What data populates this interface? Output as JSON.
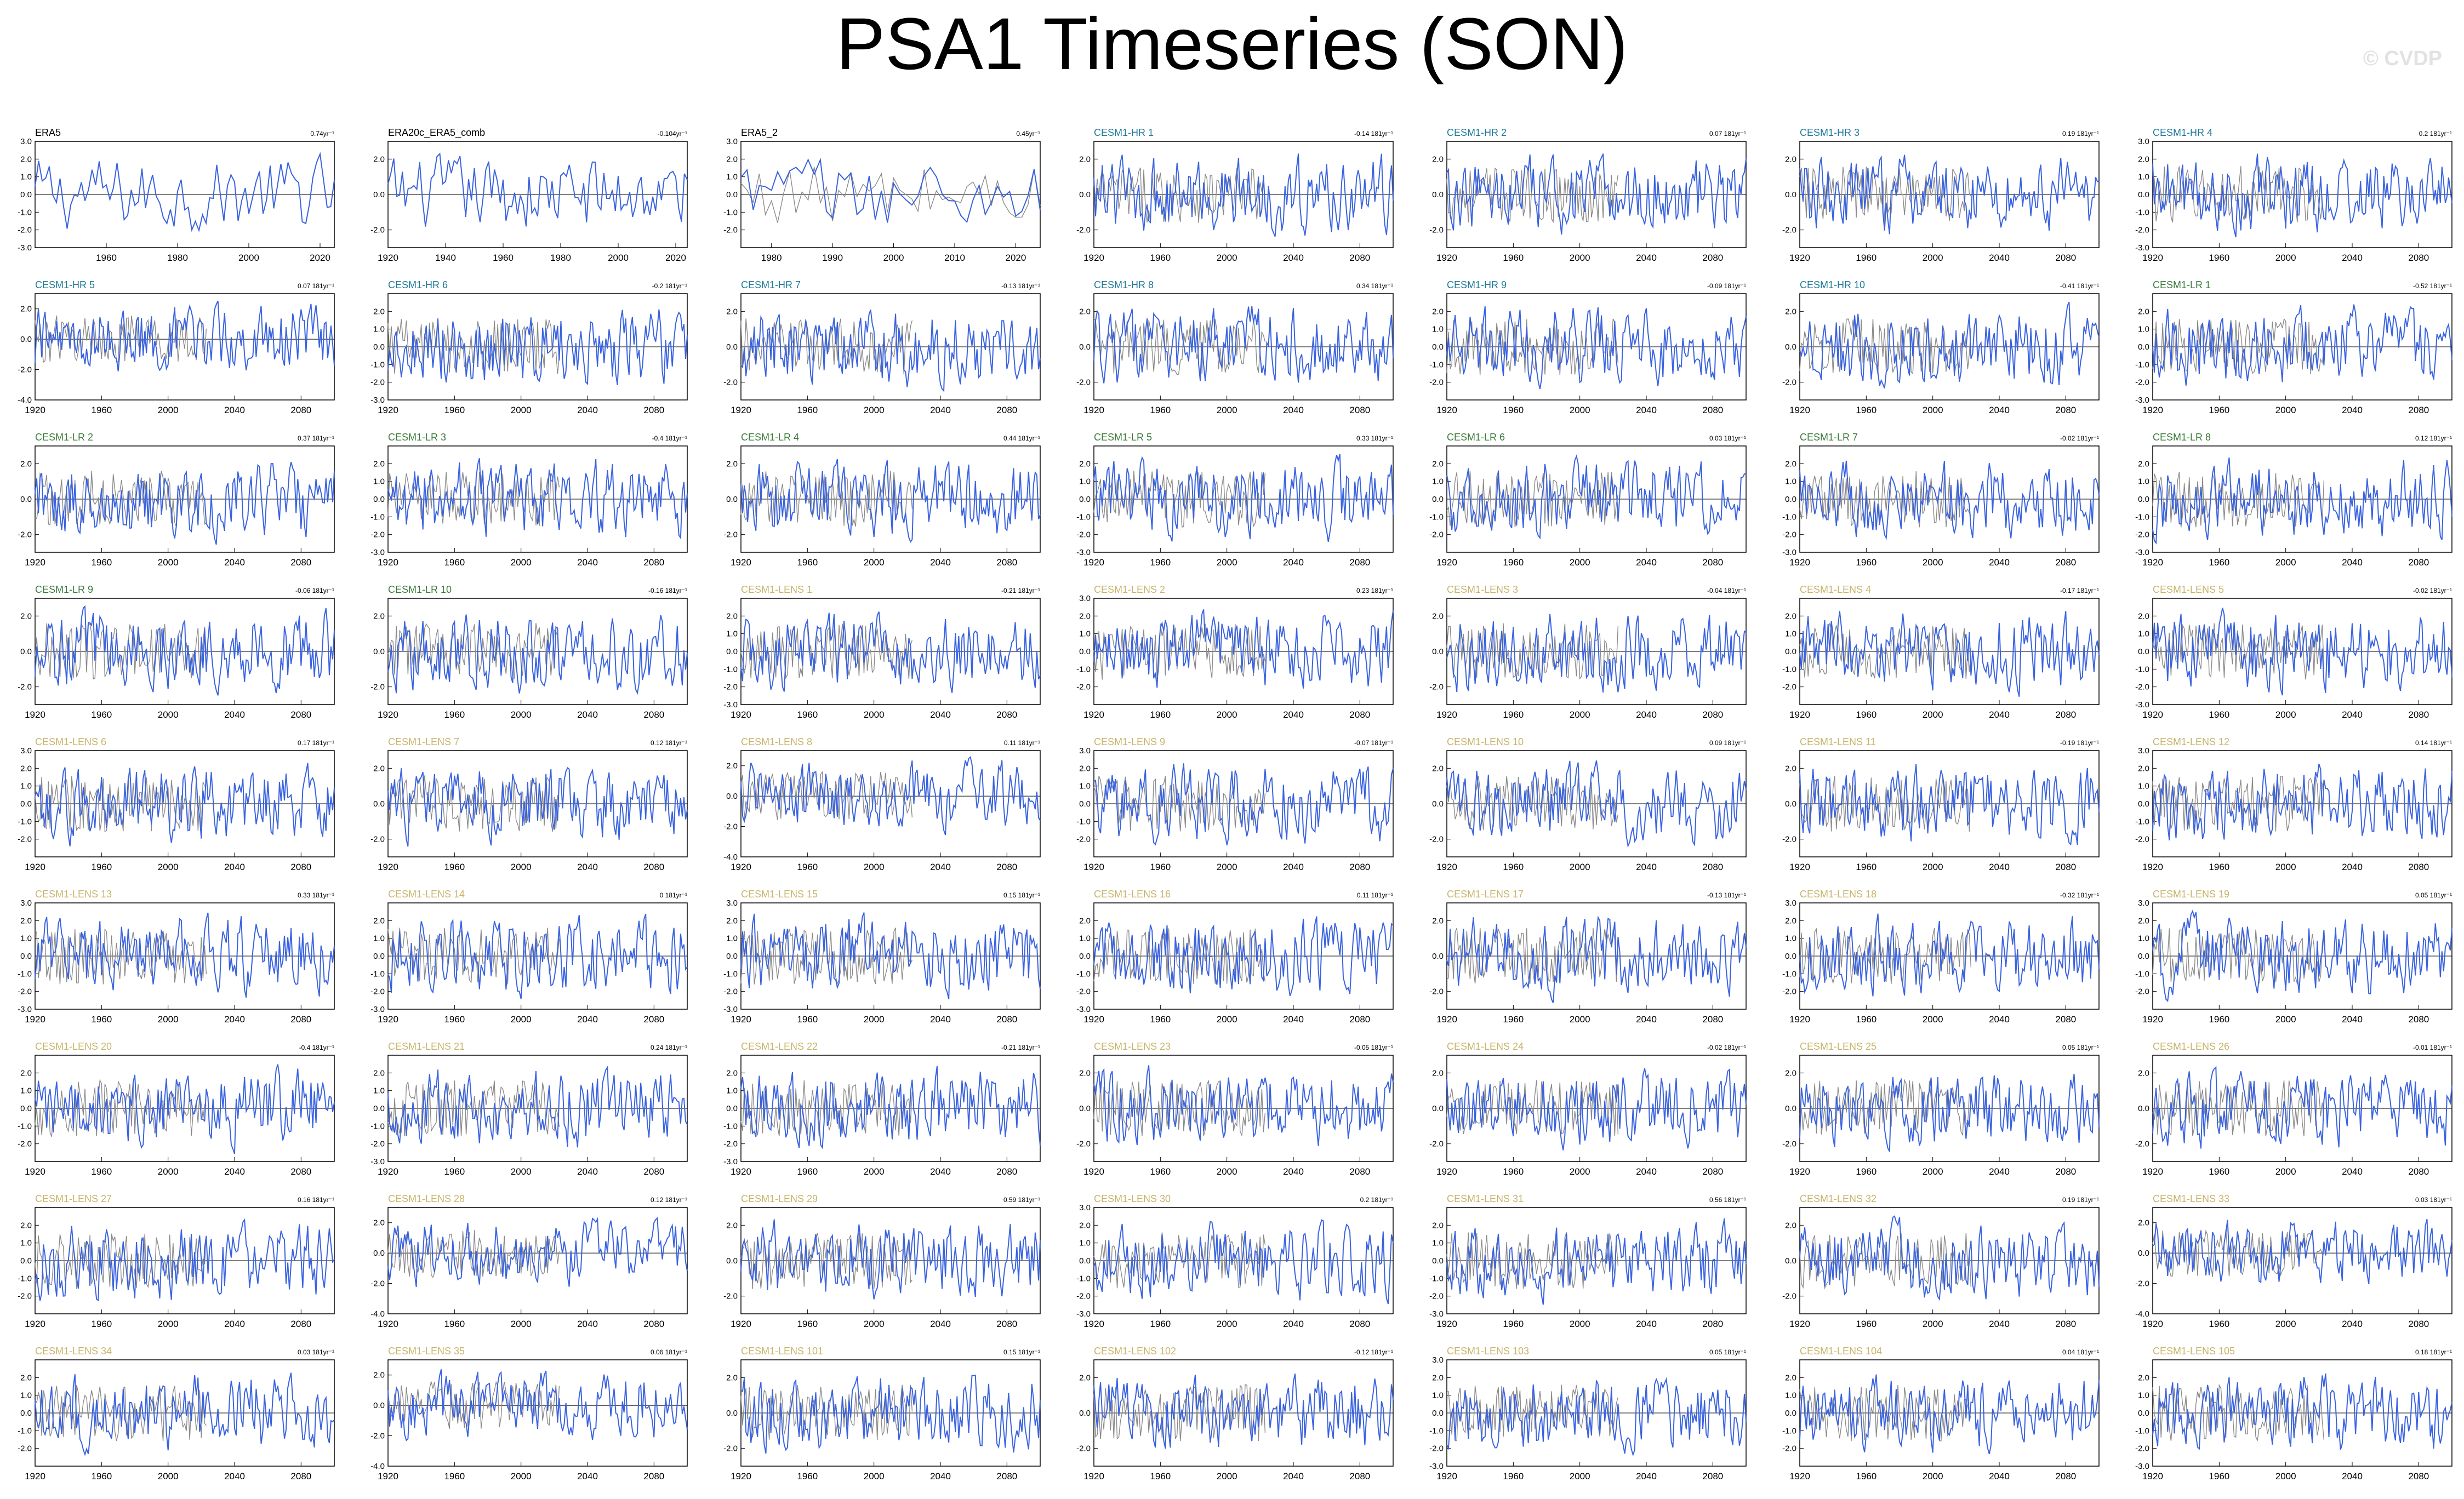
{
  "title": "PSA1 Timeseries (SON)",
  "watermark": "© CVDP",
  "colors": {
    "obs_line": "#3a63e0",
    "model_line": "#3a63e0",
    "ref_line": "#8a8a8a",
    "zero_line": "#000000",
    "label_obs": "#000000",
    "label_hr": "#1f7a99",
    "label_lr": "#3c7a3c",
    "label_lens": "#c8b46a"
  },
  "chart_data": {
    "type": "line",
    "layout_grid": "9 rows x 7 columns",
    "reference_series_color": "gray",
    "panels": [
      {
        "name": "ERA5",
        "trend": "0.74yr⁻¹",
        "group": "obs",
        "xlim": [
          1940,
          2024
        ],
        "xticks": [
          "1960",
          "1980",
          "2000",
          "2020"
        ],
        "yticks": [
          "3.0",
          "2.0",
          "1.0",
          "0.0",
          "-1.0",
          "-2.0",
          "-3.0"
        ],
        "ylim": [
          -3,
          3
        ],
        "overlay": false
      },
      {
        "name": "ERA20c_ERA5_comb",
        "trend": "-0.104yr⁻¹",
        "group": "obs",
        "xlim": [
          1920,
          2024
        ],
        "xticks": [
          "1920",
          "1940",
          "1960",
          "1980",
          "2000",
          "2020"
        ],
        "yticks": [
          "2.0",
          "0.0",
          "-2.0"
        ],
        "ylim": [
          -3,
          3
        ],
        "overlay": false
      },
      {
        "name": "ERA5_2",
        "trend": "0.45yr⁻¹",
        "group": "obs",
        "xlim": [
          1975,
          2024
        ],
        "xticks": [
          "1980",
          "1990",
          "2000",
          "2010",
          "2020"
        ],
        "yticks": [
          "3.0",
          "2.0",
          "1.0",
          "0.0",
          "-1.0",
          "-2.0"
        ],
        "ylim": [
          -3,
          3
        ],
        "overlay": true
      },
      {
        "name": "CESM1-HR 1",
        "trend": "-0.14 181yr⁻¹",
        "group": "hr",
        "yticks": [
          "2.0",
          "0.0",
          "-2.0"
        ],
        "ylim": [
          -3,
          3
        ]
      },
      {
        "name": "CESM1-HR 2",
        "trend": "0.07 181yr⁻¹",
        "group": "hr",
        "yticks": [
          "2.0",
          "0.0",
          "-2.0"
        ],
        "ylim": [
          -3,
          3
        ]
      },
      {
        "name": "CESM1-HR 3",
        "trend": "0.19 181yr⁻¹",
        "group": "hr",
        "yticks": [
          "2.0",
          "0.0",
          "-2.0"
        ],
        "ylim": [
          -3,
          3
        ]
      },
      {
        "name": "CESM1-HR 4",
        "trend": "0.2 181yr⁻¹",
        "group": "hr",
        "yticks": [
          "3.0",
          "2.0",
          "1.0",
          "0.0",
          "-1.0",
          "-2.0",
          "-3.0"
        ],
        "ylim": [
          -3,
          3
        ]
      },
      {
        "name": "CESM1-HR 5",
        "trend": "0.07 181yr⁻¹",
        "group": "hr",
        "yticks": [
          "2.0",
          "0.0",
          "-2.0",
          "-4.0"
        ],
        "ylim": [
          -4,
          3
        ]
      },
      {
        "name": "CESM1-HR 6",
        "trend": "-0.2 181yr⁻¹",
        "group": "hr",
        "yticks": [
          "2.0",
          "1.0",
          "0.0",
          "-1.0",
          "-2.0",
          "-3.0"
        ],
        "ylim": [
          -3,
          3
        ]
      },
      {
        "name": "CESM1-HR 7",
        "trend": "-0.13 181yr⁻¹",
        "group": "hr",
        "yticks": [
          "2.0",
          "0.0",
          "-2.0"
        ],
        "ylim": [
          -3,
          3
        ]
      },
      {
        "name": "CESM1-HR 8",
        "trend": "0.34 181yr⁻¹",
        "group": "hr",
        "yticks": [
          "2.0",
          "0.0",
          "-2.0"
        ],
        "ylim": [
          -3,
          3
        ]
      },
      {
        "name": "CESM1-HR 9",
        "trend": "-0.09 181yr⁻¹",
        "group": "hr",
        "yticks": [
          "2.0",
          "1.0",
          "0.0",
          "-1.0",
          "-2.0"
        ],
        "ylim": [
          -3,
          3
        ]
      },
      {
        "name": "CESM1-HR 10",
        "trend": "-0.41 181yr⁻¹",
        "group": "hr",
        "yticks": [
          "2.0",
          "0.0",
          "-2.0"
        ],
        "ylim": [
          -3,
          3
        ]
      },
      {
        "name": "CESM1-LR 1",
        "trend": "-0.52 181yr⁻¹",
        "group": "lr",
        "yticks": [
          "2.0",
          "1.0",
          "0.0",
          "-1.0",
          "-2.0",
          "-3.0"
        ],
        "ylim": [
          -3,
          3
        ]
      },
      {
        "name": "CESM1-LR 2",
        "trend": "0.37 181yr⁻¹",
        "group": "lr",
        "yticks": [
          "2.0",
          "0.0",
          "-2.0"
        ],
        "ylim": [
          -3,
          3
        ]
      },
      {
        "name": "CESM1-LR 3",
        "trend": "-0.4 181yr⁻¹",
        "group": "lr",
        "yticks": [
          "2.0",
          "1.0",
          "0.0",
          "-1.0",
          "-2.0",
          "-3.0"
        ],
        "ylim": [
          -3,
          3
        ]
      },
      {
        "name": "CESM1-LR 4",
        "trend": "0.44 181yr⁻¹",
        "group": "lr",
        "yticks": [
          "2.0",
          "0.0",
          "-2.0"
        ],
        "ylim": [
          -3,
          3
        ]
      },
      {
        "name": "CESM1-LR 5",
        "trend": "0.33 181yr⁻¹",
        "group": "lr",
        "yticks": [
          "2.0",
          "1.0",
          "0.0",
          "-1.0",
          "-2.0",
          "-3.0"
        ],
        "ylim": [
          -3,
          3
        ]
      },
      {
        "name": "CESM1-LR 6",
        "trend": "0.03 181yr⁻¹",
        "group": "lr",
        "yticks": [
          "2.0",
          "1.0",
          "0.0",
          "-1.0",
          "-2.0"
        ],
        "ylim": [
          -3,
          3
        ]
      },
      {
        "name": "CESM1-LR 7",
        "trend": "-0.02 181yr⁻¹",
        "group": "lr",
        "yticks": [
          "2.0",
          "1.0",
          "0.0",
          "-1.0",
          "-2.0",
          "-3.0"
        ],
        "ylim": [
          -3,
          3
        ]
      },
      {
        "name": "CESM1-LR 8",
        "trend": "0.12 181yr⁻¹",
        "group": "lr",
        "yticks": [
          "2.0",
          "1.0",
          "0.0",
          "-1.0",
          "-2.0",
          "-3.0"
        ],
        "ylim": [
          -3,
          3
        ]
      },
      {
        "name": "CESM1-LR 9",
        "trend": "-0.06 181yr⁻¹",
        "group": "lr",
        "yticks": [
          "2.0",
          "0.0",
          "-2.0"
        ],
        "ylim": [
          -3,
          3
        ]
      },
      {
        "name": "CESM1-LR 10",
        "trend": "-0.16 181yr⁻¹",
        "group": "lr",
        "yticks": [
          "2.0",
          "0.0",
          "-2.0"
        ],
        "ylim": [
          -3,
          3
        ]
      },
      {
        "name": "CESM1-LENS 1",
        "trend": "-0.21 181yr⁻¹",
        "group": "lens",
        "yticks": [
          "2.0",
          "1.0",
          "0.0",
          "-1.0",
          "-2.0",
          "-3.0"
        ],
        "ylim": [
          -3,
          3
        ]
      },
      {
        "name": "CESM1-LENS 2",
        "trend": "0.23 181yr⁻¹",
        "group": "lens",
        "yticks": [
          "3.0",
          "2.0",
          "1.0",
          "0.0",
          "-1.0",
          "-2.0"
        ],
        "ylim": [
          -3,
          3
        ]
      },
      {
        "name": "CESM1-LENS 3",
        "trend": "-0.04 181yr⁻¹",
        "group": "lens",
        "yticks": [
          "2.0",
          "0.0",
          "-2.0"
        ],
        "ylim": [
          -3,
          3
        ]
      },
      {
        "name": "CESM1-LENS 4",
        "trend": "-0.17 181yr⁻¹",
        "group": "lens",
        "yticks": [
          "2.0",
          "1.0",
          "0.0",
          "-1.0",
          "-2.0"
        ],
        "ylim": [
          -3,
          3
        ]
      },
      {
        "name": "CESM1-LENS 5",
        "trend": "-0.02 181yr⁻¹",
        "group": "lens",
        "yticks": [
          "2.0",
          "1.0",
          "0.0",
          "-1.0",
          "-2.0",
          "-3.0"
        ],
        "ylim": [
          -3,
          3
        ]
      },
      {
        "name": "CESM1-LENS 6",
        "trend": "0.17 181yr⁻¹",
        "group": "lens",
        "yticks": [
          "3.0",
          "2.0",
          "1.0",
          "0.0",
          "-1.0",
          "-2.0"
        ],
        "ylim": [
          -3,
          3
        ]
      },
      {
        "name": "CESM1-LENS 7",
        "trend": "0.12 181yr⁻¹",
        "group": "lens",
        "yticks": [
          "2.0",
          "0.0",
          "-2.0"
        ],
        "ylim": [
          -3,
          3
        ]
      },
      {
        "name": "CESM1-LENS 8",
        "trend": "0.11 181yr⁻¹",
        "group": "lens",
        "yticks": [
          "2.0",
          "0.0",
          "-2.0",
          "-4.0"
        ],
        "ylim": [
          -4,
          3
        ]
      },
      {
        "name": "CESM1-LENS 9",
        "trend": "-0.07 181yr⁻¹",
        "group": "lens",
        "yticks": [
          "3.0",
          "2.0",
          "1.0",
          "0.0",
          "-1.0",
          "-2.0"
        ],
        "ylim": [
          -3,
          3
        ]
      },
      {
        "name": "CESM1-LENS 10",
        "trend": "0.09 181yr⁻¹",
        "group": "lens",
        "yticks": [
          "2.0",
          "0.0",
          "-2.0"
        ],
        "ylim": [
          -3,
          3
        ]
      },
      {
        "name": "CESM1-LENS 11",
        "trend": "-0.19 181yr⁻¹",
        "group": "lens",
        "yticks": [
          "2.0",
          "0.0",
          "-2.0"
        ],
        "ylim": [
          -3,
          3
        ]
      },
      {
        "name": "CESM1-LENS 12",
        "trend": "0.14 181yr⁻¹",
        "group": "lens",
        "yticks": [
          "3.0",
          "2.0",
          "1.0",
          "0.0",
          "-1.0",
          "-2.0"
        ],
        "ylim": [
          -3,
          3
        ]
      },
      {
        "name": "CESM1-LENS 13",
        "trend": "0.33 181yr⁻¹",
        "group": "lens",
        "yticks": [
          "3.0",
          "2.0",
          "1.0",
          "0.0",
          "-1.0",
          "-2.0",
          "-3.0"
        ],
        "ylim": [
          -3,
          3
        ]
      },
      {
        "name": "CESM1-LENS 14",
        "trend": "0 181yr⁻¹",
        "group": "lens",
        "yticks": [
          "2.0",
          "1.0",
          "0.0",
          "-1.0",
          "-2.0",
          "-3.0"
        ],
        "ylim": [
          -3,
          3
        ]
      },
      {
        "name": "CESM1-LENS 15",
        "trend": "0.15 181yr⁻¹",
        "group": "lens",
        "yticks": [
          "3.0",
          "2.0",
          "1.0",
          "0.0",
          "-1.0",
          "-2.0",
          "-3.0"
        ],
        "ylim": [
          -3,
          3
        ]
      },
      {
        "name": "CESM1-LENS 16",
        "trend": "0.11 181yr⁻¹",
        "group": "lens",
        "yticks": [
          "2.0",
          "1.0",
          "0.0",
          "-1.0",
          "-2.0",
          "-3.0"
        ],
        "ylim": [
          -3,
          3
        ]
      },
      {
        "name": "CESM1-LENS 17",
        "trend": "-0.13 181yr⁻¹",
        "group": "lens",
        "yticks": [
          "2.0",
          "0.0",
          "-2.0"
        ],
        "ylim": [
          -3,
          3
        ]
      },
      {
        "name": "CESM1-LENS 18",
        "trend": "-0.32 181yr⁻¹",
        "group": "lens",
        "yticks": [
          "3.0",
          "2.0",
          "1.0",
          "0.0",
          "-1.0",
          "-2.0"
        ],
        "ylim": [
          -3,
          3
        ]
      },
      {
        "name": "CESM1-LENS 19",
        "trend": "0.05 181yr⁻¹",
        "group": "lens",
        "yticks": [
          "3.0",
          "2.0",
          "1.0",
          "0.0",
          "-1.0",
          "-2.0"
        ],
        "ylim": [
          -3,
          3
        ]
      },
      {
        "name": "CESM1-LENS 20",
        "trend": "-0.4 181yr⁻¹",
        "group": "lens",
        "yticks": [
          "2.0",
          "1.0",
          "0.0",
          "-1.0",
          "-2.0"
        ],
        "ylim": [
          -3,
          3
        ]
      },
      {
        "name": "CESM1-LENS 21",
        "trend": "0.24 181yr⁻¹",
        "group": "lens",
        "yticks": [
          "2.0",
          "1.0",
          "0.0",
          "-1.0",
          "-2.0",
          "-3.0"
        ],
        "ylim": [
          -3,
          3
        ]
      },
      {
        "name": "CESM1-LENS 22",
        "trend": "-0.21 181yr⁻¹",
        "group": "lens",
        "yticks": [
          "2.0",
          "1.0",
          "0.0",
          "-1.0",
          "-2.0",
          "-3.0"
        ],
        "ylim": [
          -3,
          3
        ]
      },
      {
        "name": "CESM1-LENS 23",
        "trend": "-0.05 181yr⁻¹",
        "group": "lens",
        "yticks": [
          "2.0",
          "0.0",
          "-2.0"
        ],
        "ylim": [
          -3,
          3
        ]
      },
      {
        "name": "CESM1-LENS 24",
        "trend": "-0.02 181yr⁻¹",
        "group": "lens",
        "yticks": [
          "2.0",
          "0.0",
          "-2.0"
        ],
        "ylim": [
          -3,
          3
        ]
      },
      {
        "name": "CESM1-LENS 25",
        "trend": "0.05 181yr⁻¹",
        "group": "lens",
        "yticks": [
          "2.0",
          "0.0",
          "-2.0"
        ],
        "ylim": [
          -3,
          3
        ]
      },
      {
        "name": "CESM1-LENS 26",
        "trend": "-0.01 181yr⁻¹",
        "group": "lens",
        "yticks": [
          "2.0",
          "0.0",
          "-2.0"
        ],
        "ylim": [
          -3,
          3
        ]
      },
      {
        "name": "CESM1-LENS 27",
        "trend": "0.16 181yr⁻¹",
        "group": "lens",
        "yticks": [
          "2.0",
          "1.0",
          "0.0",
          "-1.0",
          "-2.0"
        ],
        "ylim": [
          -3,
          3
        ]
      },
      {
        "name": "CESM1-LENS 28",
        "trend": "0.12 181yr⁻¹",
        "group": "lens",
        "yticks": [
          "2.0",
          "0.0",
          "-2.0",
          "-4.0"
        ],
        "ylim": [
          -4,
          3
        ]
      },
      {
        "name": "CESM1-LENS 29",
        "trend": "0.59 181yr⁻¹",
        "group": "lens",
        "yticks": [
          "2.0",
          "0.0",
          "-2.0"
        ],
        "ylim": [
          -3,
          3
        ]
      },
      {
        "name": "CESM1-LENS 30",
        "trend": "0.2 181yr⁻¹",
        "group": "lens",
        "yticks": [
          "3.0",
          "2.0",
          "1.0",
          "0.0",
          "-1.0",
          "-2.0",
          "-3.0"
        ],
        "ylim": [
          -3,
          3
        ]
      },
      {
        "name": "CESM1-LENS 31",
        "trend": "0.56 181yr⁻¹",
        "group": "lens",
        "yticks": [
          "2.0",
          "1.0",
          "0.0",
          "-1.0",
          "-2.0",
          "-3.0"
        ],
        "ylim": [
          -3,
          3
        ]
      },
      {
        "name": "CESM1-LENS 32",
        "trend": "0.19 181yr⁻¹",
        "group": "lens",
        "yticks": [
          "2.0",
          "0.0",
          "-2.0"
        ],
        "ylim": [
          -3,
          3
        ]
      },
      {
        "name": "CESM1-LENS 33",
        "trend": "0.03 181yr⁻¹",
        "group": "lens",
        "yticks": [
          "2.0",
          "0.0",
          "-2.0",
          "-4.0"
        ],
        "ylim": [
          -4,
          3
        ]
      },
      {
        "name": "CESM1-LENS 34",
        "trend": "0.03 181yr⁻¹",
        "group": "lens",
        "yticks": [
          "2.0",
          "1.0",
          "0.0",
          "-1.0",
          "-2.0"
        ],
        "ylim": [
          -3,
          3
        ]
      },
      {
        "name": "CESM1-LENS 35",
        "trend": "0.06 181yr⁻¹",
        "group": "lens",
        "yticks": [
          "2.0",
          "0.0",
          "-2.0",
          "-4.0"
        ],
        "ylim": [
          -4,
          3
        ]
      },
      {
        "name": "CESM1-LENS 101",
        "trend": "0.15 181yr⁻¹",
        "group": "lens",
        "yticks": [
          "2.0",
          "0.0",
          "-2.0"
        ],
        "ylim": [
          -3,
          3
        ]
      },
      {
        "name": "CESM1-LENS 102",
        "trend": "-0.12 181yr⁻¹",
        "group": "lens",
        "yticks": [
          "2.0",
          "0.0",
          "-2.0"
        ],
        "ylim": [
          -3,
          3
        ]
      },
      {
        "name": "CESM1-LENS 103",
        "trend": "0.05 181yr⁻¹",
        "group": "lens",
        "yticks": [
          "3.0",
          "2.0",
          "1.0",
          "0.0",
          "-1.0",
          "-2.0",
          "-3.0"
        ],
        "ylim": [
          -3,
          3
        ]
      },
      {
        "name": "CESM1-LENS 104",
        "trend": "0.04 181yr⁻¹",
        "group": "lens",
        "yticks": [
          "2.0",
          "1.0",
          "0.0",
          "-1.0",
          "-2.0"
        ],
        "ylim": [
          -3,
          3
        ]
      },
      {
        "name": "CESM1-LENS 105",
        "trend": "0.18 181yr⁻¹",
        "group": "lens",
        "yticks": [
          "2.0",
          "1.0",
          "0.0",
          "-1.0",
          "-2.0",
          "-3.0"
        ],
        "ylim": [
          -3,
          3
        ]
      }
    ],
    "model_xlim": [
      1920,
      2100
    ],
    "model_xticks": [
      "1920",
      "1960",
      "2000",
      "2040",
      "2080"
    ]
  }
}
